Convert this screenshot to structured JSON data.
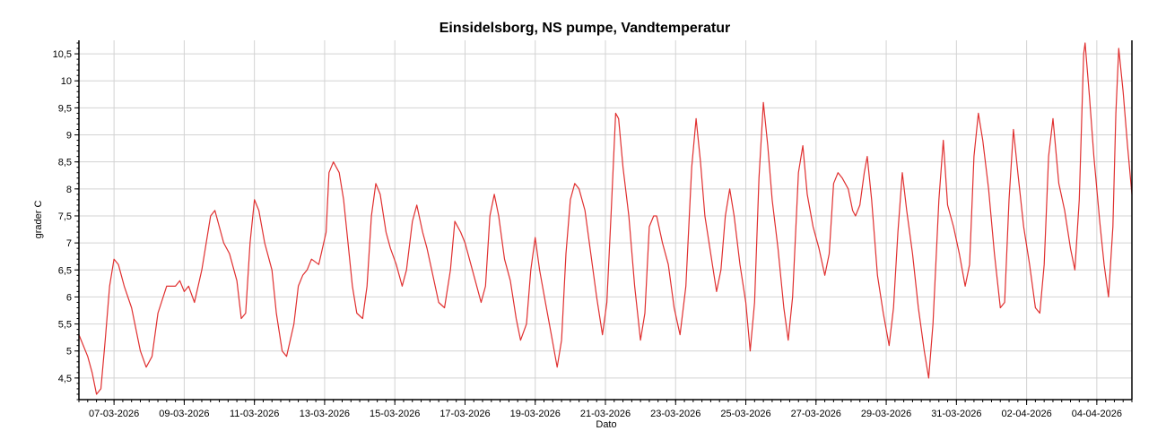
{
  "chart_data": {
    "type": "line",
    "title": "Einsidelsborg, NS pumpe, Vandtemperatur",
    "xlabel": "Dato",
    "ylabel": "grader C",
    "x_tick_labels": [
      "07-03-2026",
      "09-03-2026",
      "11-03-2026",
      "13-03-2026",
      "15-03-2026",
      "17-03-2026",
      "19-03-2026",
      "21-03-2026",
      "23-03-2026",
      "25-03-2026",
      "27-03-2026",
      "29-03-2026",
      "31-03-2026",
      "02-04-2026",
      "04-04-2026"
    ],
    "y_tick_labels": [
      "4,5",
      "5",
      "5,5",
      "6",
      "6,5",
      "7",
      "7,5",
      "8",
      "8,5",
      "9",
      "9,5",
      "10",
      "10,5"
    ],
    "y_ticks": [
      4.5,
      5,
      5.5,
      6,
      6.5,
      7,
      7.5,
      8,
      8.5,
      9,
      9.5,
      10,
      10.5
    ],
    "xlim": [
      "2026-03-06 00:00",
      "2026-04-05 00:00"
    ],
    "ylim": [
      4.1,
      10.75
    ],
    "grid": true,
    "legend": "none",
    "series": [
      {
        "color": "#e03030",
        "points": [
          [
            "2026-03-06 00:00",
            5.3
          ],
          [
            "2026-03-06 06:00",
            4.9
          ],
          [
            "2026-03-06 09:00",
            4.6
          ],
          [
            "2026-03-06 12:00",
            4.2
          ],
          [
            "2026-03-06 15:00",
            4.3
          ],
          [
            "2026-03-06 18:00",
            5.2
          ],
          [
            "2026-03-06 21:00",
            6.2
          ],
          [
            "2026-03-07 00:00",
            6.7
          ],
          [
            "2026-03-07 03:00",
            6.6
          ],
          [
            "2026-03-07 07:00",
            6.2
          ],
          [
            "2026-03-07 12:00",
            5.8
          ],
          [
            "2026-03-07 18:00",
            5.0
          ],
          [
            "2026-03-07 22:00",
            4.7
          ],
          [
            "2026-03-08 02:00",
            4.9
          ],
          [
            "2026-03-08 06:00",
            5.7
          ],
          [
            "2026-03-08 12:00",
            6.2
          ],
          [
            "2026-03-08 18:00",
            6.2
          ],
          [
            "2026-03-08 21:00",
            6.3
          ],
          [
            "2026-03-09 00:00",
            6.1
          ],
          [
            "2026-03-09 03:00",
            6.2
          ],
          [
            "2026-03-09 07:00",
            5.9
          ],
          [
            "2026-03-09 12:00",
            6.5
          ],
          [
            "2026-03-09 18:00",
            7.5
          ],
          [
            "2026-03-09 21:00",
            7.6
          ],
          [
            "2026-03-10 00:00",
            7.3
          ],
          [
            "2026-03-10 03:00",
            7.0
          ],
          [
            "2026-03-10 07:00",
            6.8
          ],
          [
            "2026-03-10 12:00",
            6.3
          ],
          [
            "2026-03-10 15:00",
            5.6
          ],
          [
            "2026-03-10 18:00",
            5.7
          ],
          [
            "2026-03-10 21:00",
            7.0
          ],
          [
            "2026-03-11 00:00",
            7.8
          ],
          [
            "2026-03-11 03:00",
            7.6
          ],
          [
            "2026-03-11 07:00",
            7.0
          ],
          [
            "2026-03-11 12:00",
            6.5
          ],
          [
            "2026-03-11 15:00",
            5.7
          ],
          [
            "2026-03-11 19:00",
            5.0
          ],
          [
            "2026-03-11 22:00",
            4.9
          ],
          [
            "2026-03-12 03:00",
            5.5
          ],
          [
            "2026-03-12 06:00",
            6.2
          ],
          [
            "2026-03-12 09:00",
            6.4
          ],
          [
            "2026-03-12 12:00",
            6.5
          ],
          [
            "2026-03-12 15:00",
            6.7
          ],
          [
            "2026-03-12 20:00",
            6.6
          ],
          [
            "2026-03-13 01:00",
            7.2
          ],
          [
            "2026-03-13 03:00",
            8.3
          ],
          [
            "2026-03-13 06:00",
            8.5
          ],
          [
            "2026-03-13 10:00",
            8.3
          ],
          [
            "2026-03-13 13:00",
            7.8
          ],
          [
            "2026-03-13 16:00",
            7.0
          ],
          [
            "2026-03-13 19:00",
            6.2
          ],
          [
            "2026-03-13 22:00",
            5.7
          ],
          [
            "2026-03-14 02:00",
            5.6
          ],
          [
            "2026-03-14 05:00",
            6.2
          ],
          [
            "2026-03-14 08:00",
            7.5
          ],
          [
            "2026-03-14 11:00",
            8.1
          ],
          [
            "2026-03-14 14:00",
            7.9
          ],
          [
            "2026-03-14 18:00",
            7.2
          ],
          [
            "2026-03-14 21:00",
            6.9
          ],
          [
            "2026-03-15 01:00",
            6.6
          ],
          [
            "2026-03-15 05:00",
            6.2
          ],
          [
            "2026-03-15 08:00",
            6.5
          ],
          [
            "2026-03-15 12:00",
            7.4
          ],
          [
            "2026-03-15 15:00",
            7.7
          ],
          [
            "2026-03-15 19:00",
            7.2
          ],
          [
            "2026-03-15 22:00",
            6.9
          ],
          [
            "2026-03-16 02:00",
            6.4
          ],
          [
            "2026-03-16 06:00",
            5.9
          ],
          [
            "2026-03-16 10:00",
            5.8
          ],
          [
            "2026-03-16 14:00",
            6.5
          ],
          [
            "2026-03-16 17:00",
            7.4
          ],
          [
            "2026-03-16 21:00",
            7.2
          ],
          [
            "2026-03-17 00:00",
            7.0
          ],
          [
            "2026-03-17 04:00",
            6.6
          ],
          [
            "2026-03-17 07:00",
            6.3
          ],
          [
            "2026-03-17 11:00",
            5.9
          ],
          [
            "2026-03-17 14:00",
            6.2
          ],
          [
            "2026-03-17 17:00",
            7.5
          ],
          [
            "2026-03-17 20:00",
            7.9
          ],
          [
            "2026-03-17 23:00",
            7.5
          ],
          [
            "2026-03-18 03:00",
            6.7
          ],
          [
            "2026-03-18 07:00",
            6.3
          ],
          [
            "2026-03-18 11:00",
            5.6
          ],
          [
            "2026-03-18 14:00",
            5.2
          ],
          [
            "2026-03-18 18:00",
            5.5
          ],
          [
            "2026-03-18 21:00",
            6.5
          ],
          [
            "2026-03-19 00:00",
            7.1
          ],
          [
            "2026-03-19 03:00",
            6.5
          ],
          [
            "2026-03-19 07:00",
            5.9
          ],
          [
            "2026-03-19 11:00",
            5.3
          ],
          [
            "2026-03-19 15:00",
            4.7
          ],
          [
            "2026-03-19 18:00",
            5.2
          ],
          [
            "2026-03-19 21:00",
            6.8
          ],
          [
            "2026-03-20 00:00",
            7.8
          ],
          [
            "2026-03-20 03:00",
            8.1
          ],
          [
            "2026-03-20 06:00",
            8.0
          ],
          [
            "2026-03-20 10:00",
            7.6
          ],
          [
            "2026-03-20 14:00",
            6.8
          ],
          [
            "2026-03-20 18:00",
            6.0
          ],
          [
            "2026-03-20 22:00",
            5.3
          ],
          [
            "2026-03-21 01:00",
            5.9
          ],
          [
            "2026-03-21 04:00",
            7.6
          ],
          [
            "2026-03-21 07:00",
            9.4
          ],
          [
            "2026-03-21 09:00",
            9.3
          ],
          [
            "2026-03-21 12:00",
            8.4
          ],
          [
            "2026-03-21 16:00",
            7.5
          ],
          [
            "2026-03-21 20:00",
            6.2
          ],
          [
            "2026-03-22 00:00",
            5.2
          ],
          [
            "2026-03-22 03:00",
            5.7
          ],
          [
            "2026-03-22 06:00",
            7.3
          ],
          [
            "2026-03-22 09:00",
            7.5
          ],
          [
            "2026-03-22 11:00",
            7.5
          ],
          [
            "2026-03-22 15:00",
            7.0
          ],
          [
            "2026-03-22 19:00",
            6.6
          ],
          [
            "2026-03-22 23:00",
            5.8
          ],
          [
            "2026-03-23 03:00",
            5.3
          ],
          [
            "2026-03-23 07:00",
            6.2
          ],
          [
            "2026-03-23 11:00",
            8.4
          ],
          [
            "2026-03-23 14:00",
            9.3
          ],
          [
            "2026-03-23 17:00",
            8.5
          ],
          [
            "2026-03-23 20:00",
            7.5
          ],
          [
            "2026-03-24 00:00",
            6.8
          ],
          [
            "2026-03-24 04:00",
            6.1
          ],
          [
            "2026-03-24 07:00",
            6.5
          ],
          [
            "2026-03-24 10:00",
            7.5
          ],
          [
            "2026-03-24 13:00",
            8.0
          ],
          [
            "2026-03-24 16:00",
            7.5
          ],
          [
            "2026-03-24 20:00",
            6.6
          ],
          [
            "2026-03-25 00:00",
            5.9
          ],
          [
            "2026-03-25 03:00",
            5.0
          ],
          [
            "2026-03-25 06:00",
            5.9
          ],
          [
            "2026-03-25 09:00",
            8.2
          ],
          [
            "2026-03-25 12:00",
            9.6
          ],
          [
            "2026-03-25 15:00",
            8.8
          ],
          [
            "2026-03-25 18:00",
            7.8
          ],
          [
            "2026-03-25 22:00",
            6.9
          ],
          [
            "2026-03-26 02:00",
            5.8
          ],
          [
            "2026-03-26 05:00",
            5.2
          ],
          [
            "2026-03-26 08:00",
            6.0
          ],
          [
            "2026-03-26 12:00",
            8.3
          ],
          [
            "2026-03-26 15:00",
            8.8
          ],
          [
            "2026-03-26 18:00",
            7.9
          ],
          [
            "2026-03-26 22:00",
            7.3
          ],
          [
            "2026-03-27 02:00",
            6.9
          ],
          [
            "2026-03-27 06:00",
            6.4
          ],
          [
            "2026-03-27 09:00",
            6.8
          ],
          [
            "2026-03-27 12:00",
            8.1
          ],
          [
            "2026-03-27 15:00",
            8.3
          ],
          [
            "2026-03-27 18:00",
            8.2
          ],
          [
            "2026-03-27 22:00",
            8.0
          ],
          [
            "2026-03-28 01:00",
            7.6
          ],
          [
            "2026-03-28 03:00",
            7.5
          ],
          [
            "2026-03-28 06:00",
            7.7
          ],
          [
            "2026-03-28 09:00",
            8.3
          ],
          [
            "2026-03-28 11:00",
            8.6
          ],
          [
            "2026-03-28 14:00",
            7.8
          ],
          [
            "2026-03-28 18:00",
            6.4
          ],
          [
            "2026-03-28 22:00",
            5.7
          ],
          [
            "2026-03-29 02:00",
            5.1
          ],
          [
            "2026-03-29 05:00",
            5.8
          ],
          [
            "2026-03-29 08:00",
            7.2
          ],
          [
            "2026-03-29 11:00",
            8.3
          ],
          [
            "2026-03-29 14:00",
            7.6
          ],
          [
            "2026-03-29 18:00",
            6.8
          ],
          [
            "2026-03-29 22:00",
            5.8
          ],
          [
            "2026-03-30 02:00",
            5.0
          ],
          [
            "2026-03-30 05:00",
            4.5
          ],
          [
            "2026-03-30 08:00",
            5.5
          ],
          [
            "2026-03-30 12:00",
            7.8
          ],
          [
            "2026-03-30 15:00",
            8.9
          ],
          [
            "2026-03-30 18:00",
            7.7
          ],
          [
            "2026-03-30 22:00",
            7.3
          ],
          [
            "2026-03-31 02:00",
            6.8
          ],
          [
            "2026-03-31 06:00",
            6.2
          ],
          [
            "2026-03-31 09:00",
            6.6
          ],
          [
            "2026-03-31 12:00",
            8.6
          ],
          [
            "2026-03-31 15:00",
            9.4
          ],
          [
            "2026-03-31 18:00",
            8.9
          ],
          [
            "2026-03-31 22:00",
            8.0
          ],
          [
            "2026-04-01 02:00",
            6.8
          ],
          [
            "2026-04-01 06:00",
            5.8
          ],
          [
            "2026-04-01 09:00",
            5.9
          ],
          [
            "2026-04-01 12:00",
            7.8
          ],
          [
            "2026-04-01 15:00",
            9.1
          ],
          [
            "2026-04-01 18:00",
            8.3
          ],
          [
            "2026-04-01 22:00",
            7.3
          ],
          [
            "2026-04-02 02:00",
            6.6
          ],
          [
            "2026-04-02 06:00",
            5.8
          ],
          [
            "2026-04-02 09:00",
            5.7
          ],
          [
            "2026-04-02 12:00",
            6.6
          ],
          [
            "2026-04-02 15:00",
            8.6
          ],
          [
            "2026-04-02 18:00",
            9.3
          ],
          [
            "2026-04-02 22:00",
            8.1
          ],
          [
            "2026-04-03 02:00",
            7.6
          ],
          [
            "2026-04-03 06:00",
            6.9
          ],
          [
            "2026-04-03 09:00",
            6.5
          ],
          [
            "2026-04-03 12:00",
            7.8
          ],
          [
            "2026-04-03 15:00",
            10.5
          ],
          [
            "2026-04-03 16:00",
            10.7
          ],
          [
            "2026-04-03 19:00",
            9.7
          ],
          [
            "2026-04-03 22:00",
            8.6
          ],
          [
            "2026-04-04 02:00",
            7.4
          ],
          [
            "2026-04-04 05:00",
            6.6
          ],
          [
            "2026-04-04 08:00",
            6.0
          ],
          [
            "2026-04-04 11:00",
            7.3
          ],
          [
            "2026-04-04 13:00",
            9.4
          ],
          [
            "2026-04-04 15:00",
            10.6
          ],
          [
            "2026-04-04 18:00",
            9.8
          ],
          [
            "2026-04-04 21:00",
            8.8
          ],
          [
            "2026-04-05 00:00",
            7.9
          ]
        ]
      }
    ]
  }
}
